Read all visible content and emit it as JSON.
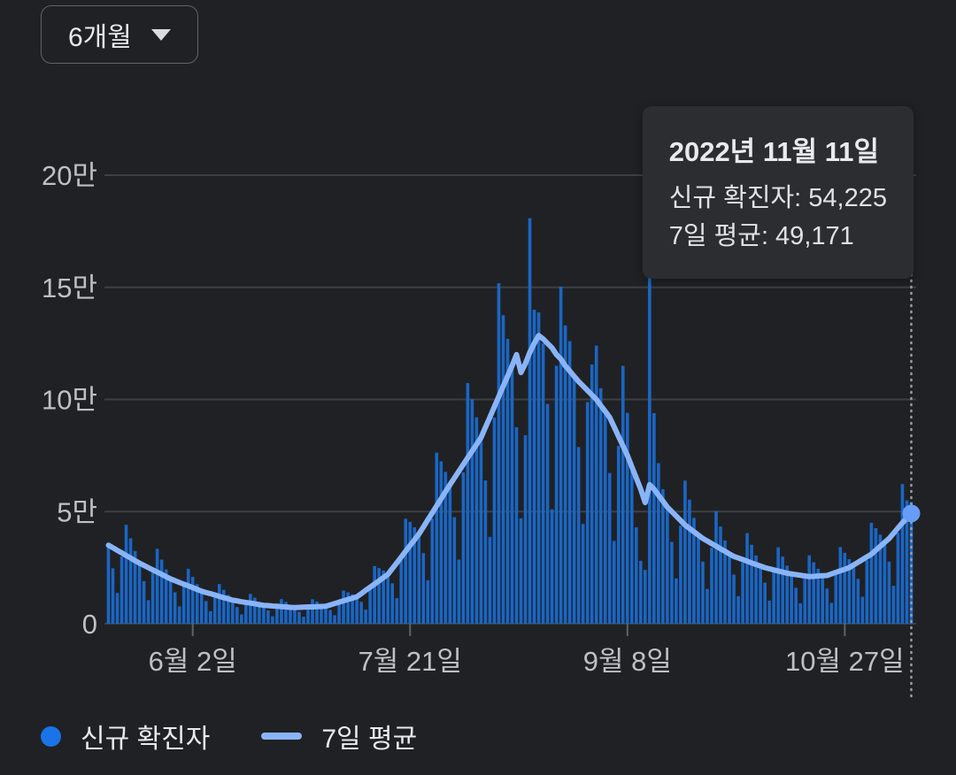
{
  "period_selector": {
    "label": "6개월"
  },
  "tooltip": {
    "date": "2022년 11월 11일",
    "lines": [
      {
        "text": "신규 확진자: 54,225"
      },
      {
        "text": "7일 평균: 49,171"
      }
    ]
  },
  "legend": {
    "items": [
      {
        "label": "신규 확진자",
        "marker": "dot",
        "color": "#1a73e8"
      },
      {
        "label": "7일 평균",
        "marker": "line",
        "color": "#8ab4f8"
      }
    ]
  },
  "chart_data": {
    "type": "bar",
    "title": "",
    "xlabel": "",
    "ylabel": "",
    "grid": true,
    "legend_position": "bottom",
    "y_axis": {
      "max": 200000,
      "ticks": [
        {
          "label": "20만",
          "value": 200000
        },
        {
          "label": "15만",
          "value": 150000
        },
        {
          "label": "10만",
          "value": 100000
        },
        {
          "label": "5만",
          "value": 50000
        },
        {
          "label": "0",
          "value": 0
        }
      ]
    },
    "x_axis": {
      "ticks": [
        {
          "label": "6월 2일",
          "index": 19
        },
        {
          "label": "7월 21일",
          "index": 68
        },
        {
          "label": "9월 8일",
          "index": 117
        },
        {
          "label": "10월 27일",
          "index": 166
        }
      ]
    },
    "highlight": {
      "index": 181,
      "date": "2022년 11월 11일",
      "new_cases": 54225,
      "avg_7day": 49171,
      "marker_color": "#669df6",
      "cursor_color": "#9aa0a6"
    },
    "series": [
      {
        "name": "신규 확진자",
        "type": "bar",
        "color": "#1a66c4",
        "values": [
          35000,
          24700,
          13700,
          30000,
          44100,
          38100,
          32400,
          27000,
          19000,
          10500,
          22800,
          33400,
          28600,
          24200,
          20000,
          14000,
          7700,
          16700,
          24500,
          20900,
          17600,
          14500,
          10100,
          5600,
          12200,
          17700,
          15100,
          12800,
          10500,
          7400,
          4100,
          9000,
          13300,
          11600,
          9800,
          8200,
          5900,
          3300,
          7400,
          11000,
          9700,
          8400,
          7200,
          5300,
          3100,
          7100,
          10900,
          9900,
          8900,
          7800,
          6100,
          3800,
          9100,
          14800,
          14000,
          13100,
          12000,
          9800,
          6300,
          15500,
          25700,
          24800,
          23700,
          22000,
          18000,
          11400,
          28200,
          46800,
          45400,
          43000,
          40000,
          31500,
          19400,
          46900,
          76300,
          72400,
          67700,
          62000,
          47500,
          28600,
          67500,
          107300,
          100100,
          92000,
          83000,
          63900,
          38700,
          91900,
          151800,
          137600,
          127000,
          115000,
          87600,
          47000,
          84100,
          180800,
          140000,
          138800,
          125000,
          98000,
          51000,
          115000,
          150300,
          133000,
          126000,
          110300,
          78800,
          44500,
          98800,
          115600,
          124000,
          105000,
          94700,
          67200,
          36900,
          79300,
          115000,
          94000,
          72000,
          43000,
          28000,
          24000,
          157000,
          93900,
          71600,
          60000,
          52000,
          36500,
          20200,
          43700,
          63800,
          55300,
          47200,
          39500,
          27700,
          15500,
          33900,
          50200,
          43400,
          37100,
          31100,
          21900,
          12300,
          27200,
          40400,
          35200,
          30400,
          25700,
          18300,
          10300,
          22800,
          34100,
          29900,
          25900,
          22200,
          16000,
          9100,
          20200,
          30500,
          27400,
          24500,
          21400,
          15700,
          9300,
          21800,
          34200,
          31600,
          28800,
          26200,
          20000,
          12000,
          28300,
          45000,
          42600,
          39700,
          36300,
          27700,
          16900,
          40600,
          62300,
          55000,
          54225
        ]
      },
      {
        "name": "7일 평균",
        "type": "line",
        "color": "#8ab4f8",
        "values": [
          35000,
          33900,
          32700,
          31600,
          30400,
          29300,
          28100,
          27000,
          26000,
          25000,
          24000,
          23000,
          22000,
          21000,
          20000,
          19200,
          18400,
          17600,
          16900,
          16100,
          15300,
          14500,
          13900,
          13400,
          12800,
          12200,
          11600,
          11100,
          10500,
          10200,
          9800,
          9500,
          9200,
          8900,
          8500,
          8200,
          8100,
          7900,
          7800,
          7600,
          7500,
          7300,
          7200,
          7300,
          7400,
          7500,
          7500,
          7600,
          7700,
          7800,
          8400,
          9000,
          9600,
          10200,
          10800,
          11400,
          12000,
          13400,
          14900,
          16300,
          17700,
          19100,
          20600,
          22000,
          24600,
          27100,
          29700,
          32300,
          34900,
          37400,
          40000,
          43100,
          46300,
          49400,
          52600,
          55700,
          58900,
          62000,
          65000,
          68000,
          71000,
          74000,
          77000,
          80000,
          83000,
          87600,
          92100,
          96700,
          101300,
          105900,
          110400,
          115000,
          120000,
          112000,
          116000,
          121000,
          125000,
          128500,
          127000,
          125000,
          123000,
          120000,
          118000,
          115000,
          112700,
          110300,
          108000,
          106000,
          104000,
          102000,
          100000,
          97300,
          94700,
          92000,
          87800,
          83500,
          79300,
          75000,
          70000,
          65000,
          60000,
          54000,
          62000,
          60000,
          57300,
          54700,
          52000,
          50000,
          48000,
          46000,
          44000,
          42500,
          41000,
          39500,
          38000,
          36900,
          35700,
          34600,
          33400,
          32300,
          31100,
          30000,
          29300,
          28600,
          27900,
          27100,
          26400,
          25700,
          25000,
          24500,
          24000,
          23500,
          23000,
          22500,
          22200,
          21900,
          21600,
          21300,
          21000,
          21100,
          21300,
          21400,
          21500,
          22200,
          22900,
          23600,
          24300,
          25000,
          26200,
          27400,
          28600,
          29800,
          31000,
          32800,
          34500,
          36300,
          38000,
          40300,
          42700,
          45000,
          47100,
          49171
        ]
      }
    ]
  }
}
